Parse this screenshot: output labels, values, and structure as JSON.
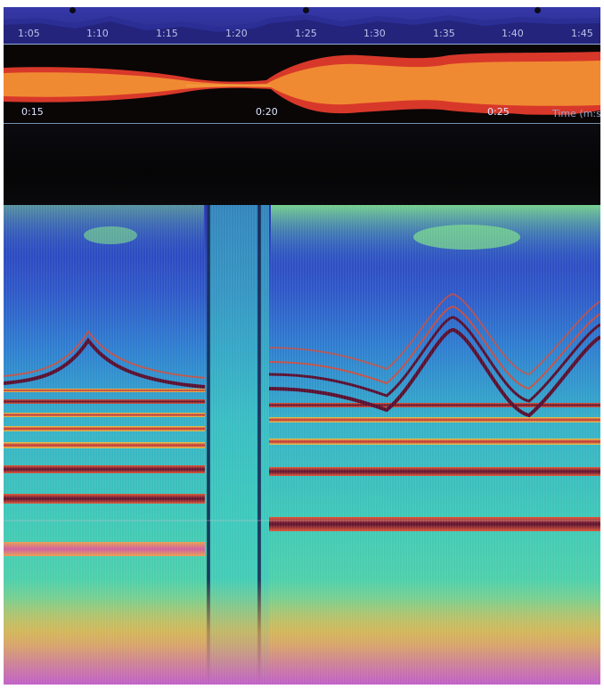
{
  "overview": {
    "ticks": [
      "1:05",
      "1:10",
      "1:15",
      "1:20",
      "1:25",
      "1:30",
      "1:35",
      "1:40",
      "1:45"
    ]
  },
  "waveform": {
    "ticks": [
      "0:15",
      "0:20",
      "0:25"
    ],
    "time_label": "Time (m:s"
  },
  "spectrogram": {
    "colormap": [
      "#2a36b8",
      "#2f7fd0",
      "#36c7c0",
      "#7de08a",
      "#e6d24a",
      "#e0482e",
      "#5a1030"
    ]
  },
  "colors": {
    "overview_bg": "#3538a8",
    "waveform_outer": "#d83a2a",
    "waveform_inner": "#f08a30",
    "axis_line": "#a8c8e8"
  }
}
